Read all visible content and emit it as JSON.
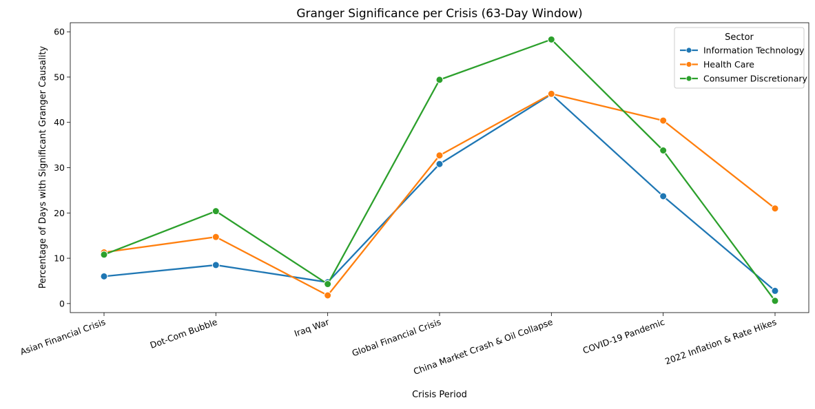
{
  "chart_data": {
    "type": "line",
    "title": "Granger Significance per Crisis (63-Day Window)",
    "xlabel": "Crisis Period",
    "ylabel": "Percentage of Days with Significant Granger Causality",
    "categories": [
      "Asian Financial Crisis",
      "Dot-Com Bubble",
      "Iraq War",
      "Global Financial Crisis",
      "China Market Crash & Oil Collapse",
      "COVID-19 Pandemic",
      "2022 Inflation & Rate Hikes"
    ],
    "yticks": [
      0,
      10,
      20,
      30,
      40,
      50,
      60
    ],
    "ylim": [
      -2,
      62
    ],
    "grid": false,
    "legend": {
      "title": "Sector",
      "position": "top-right"
    },
    "series": [
      {
        "name": "Information Technology",
        "color": "#1f77b4",
        "values": [
          6.0,
          8.5,
          4.7,
          30.8,
          46.2,
          23.7,
          2.8
        ]
      },
      {
        "name": "Health Care",
        "color": "#ff7f0e",
        "values": [
          11.3,
          14.7,
          1.8,
          32.7,
          46.3,
          40.4,
          21.0
        ]
      },
      {
        "name": "Consumer Discretionary",
        "color": "#2ca02c",
        "values": [
          10.8,
          20.4,
          4.3,
          49.4,
          58.3,
          33.8,
          0.6
        ]
      }
    ]
  }
}
